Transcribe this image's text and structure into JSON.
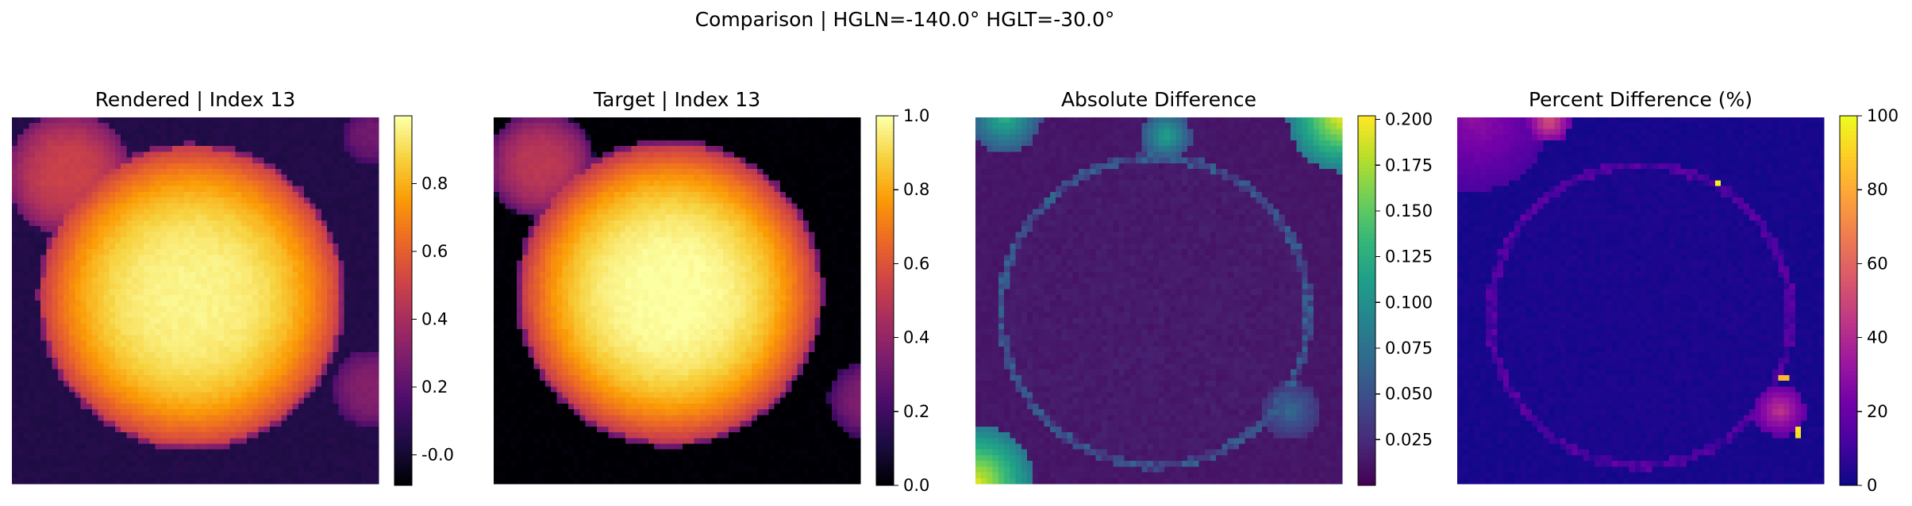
{
  "figure": {
    "suptitle": "Comparison | HGLN=-140.0° HGLT=-30.0°"
  },
  "colormaps": {
    "inferno": [
      "#000004",
      "#1b0c41",
      "#4a0c6b",
      "#781c6d",
      "#a52c60",
      "#cf4446",
      "#ed6925",
      "#fb9b06",
      "#f7d13d",
      "#fcffa4"
    ],
    "viridis": [
      "#440154",
      "#482878",
      "#3e4989",
      "#31688e",
      "#26828e",
      "#1f9e89",
      "#35b779",
      "#6ece58",
      "#b5de2b",
      "#fde725"
    ],
    "plasma": [
      "#0d0887",
      "#46039f",
      "#7201a8",
      "#9c179e",
      "#bd3786",
      "#d8576b",
      "#ed7953",
      "#fb9f3a",
      "#fdca26",
      "#f0f921"
    ]
  },
  "chart_data": [
    {
      "type": "heatmap",
      "title": "Rendered | Index 13",
      "colormap": "inferno",
      "background": 0.05,
      "vmin": -0.09,
      "vmax": 1.0,
      "colorbar_ticks": [
        "-0.0",
        "0.2",
        "0.4",
        "0.6",
        "0.8"
      ],
      "colorbar_tick_values": [
        0.0,
        0.2,
        0.4,
        0.6,
        0.8
      ],
      "features": [
        {
          "kind": "disk",
          "cx": 0.155,
          "cy": 0.155,
          "r": 0.175,
          "value": 0.5
        },
        {
          "kind": "disk",
          "cx": 0.49,
          "cy": 0.49,
          "r": 0.42,
          "value": 0.97
        },
        {
          "kind": "disk",
          "cx": 0.98,
          "cy": 0.74,
          "r": 0.11,
          "value": 0.3
        },
        {
          "kind": "disk",
          "cx": 0.98,
          "cy": 0.05,
          "r": 0.08,
          "value": 0.25
        }
      ]
    },
    {
      "type": "heatmap",
      "title": "Target | Index 13",
      "colormap": "inferno",
      "background": 0.0,
      "vmin": 0.0,
      "vmax": 1.0,
      "colorbar_ticks": [
        "0.0",
        "0.2",
        "0.4",
        "0.6",
        "0.8",
        "1.0"
      ],
      "colorbar_tick_values": [
        0.0,
        0.2,
        0.4,
        0.6,
        0.8,
        1.0
      ],
      "features": [
        {
          "kind": "disk",
          "cx": 0.13,
          "cy": 0.13,
          "r": 0.15,
          "value": 0.5
        },
        {
          "kind": "disk",
          "cx": 0.48,
          "cy": 0.48,
          "r": 0.42,
          "value": 1.0
        },
        {
          "kind": "disk",
          "cx": 1.02,
          "cy": 0.77,
          "r": 0.11,
          "value": 0.35
        }
      ]
    },
    {
      "type": "heatmap",
      "title": "Absolute Difference",
      "colormap": "viridis",
      "background": 0.012,
      "vmin": 0.0,
      "vmax": 0.202,
      "colorbar_ticks": [
        "0.025",
        "0.050",
        "0.075",
        "0.100",
        "0.125",
        "0.150",
        "0.175",
        "0.200"
      ],
      "colorbar_tick_values": [
        0.025,
        0.05,
        0.075,
        0.1,
        0.125,
        0.15,
        0.175,
        0.2
      ],
      "features": [
        {
          "kind": "ring",
          "cx": 0.49,
          "cy": 0.53,
          "r": 0.42,
          "value": 0.04
        },
        {
          "kind": "corner",
          "cx": 0.0,
          "cy": 1.0,
          "r": 0.16,
          "value": 0.2
        },
        {
          "kind": "corner",
          "cx": 1.0,
          "cy": 0.0,
          "r": 0.15,
          "value": 0.2
        },
        {
          "kind": "corner",
          "cx": 0.08,
          "cy": 0.0,
          "r": 0.1,
          "value": 0.13
        },
        {
          "kind": "corner",
          "cx": 0.52,
          "cy": 0.05,
          "r": 0.07,
          "value": 0.12
        },
        {
          "kind": "corner",
          "cx": 0.86,
          "cy": 0.8,
          "r": 0.08,
          "value": 0.07
        }
      ]
    },
    {
      "type": "heatmap",
      "title": "Percent Difference (%)",
      "colormap": "plasma",
      "background": 2,
      "vmin": 0,
      "vmax": 100,
      "colorbar_ticks": [
        "0",
        "20",
        "40",
        "60",
        "80",
        "100"
      ],
      "colorbar_tick_values": [
        0,
        20,
        40,
        60,
        80,
        100
      ],
      "features": [
        {
          "kind": "ring",
          "cx": 0.5,
          "cy": 0.54,
          "r": 0.41,
          "value": 12
        },
        {
          "kind": "corner",
          "cx": 0.05,
          "cy": 0.0,
          "r": 0.2,
          "value": 30
        },
        {
          "kind": "corner",
          "cx": 0.25,
          "cy": 0.01,
          "r": 0.06,
          "value": 55
        },
        {
          "kind": "corner",
          "cx": 0.88,
          "cy": 0.8,
          "r": 0.07,
          "value": 45
        },
        {
          "kind": "spot",
          "cx": 0.71,
          "cy": 0.18,
          "r": 0.01,
          "value": 100
        },
        {
          "kind": "spot",
          "cx": 0.89,
          "cy": 0.71,
          "r": 0.01,
          "value": 85
        },
        {
          "kind": "spot",
          "cx": 0.93,
          "cy": 0.86,
          "r": 0.01,
          "value": 95
        }
      ]
    }
  ]
}
